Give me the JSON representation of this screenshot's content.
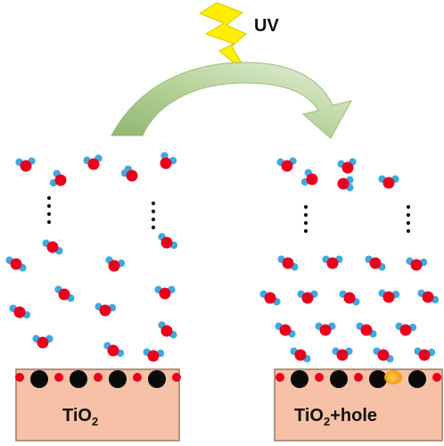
{
  "header": {
    "uv_label": "UV"
  },
  "left_panel": {
    "substrate_label": {
      "base": "TiO",
      "sub": "2",
      "suffix": ""
    }
  },
  "right_panel": {
    "substrate_label": {
      "base": "TiO",
      "sub": "2",
      "suffix": "+hole"
    }
  },
  "colors": {
    "oxygen": "#e8001c",
    "hydrogen": "#3fa9e0",
    "titanium": "#0a0a0a",
    "substrate": "#f6c1a6",
    "substrate_border": "#9a7a6a",
    "arrow": "#a9c98a",
    "lightning": "#ffee00",
    "hole": "#f2a516"
  }
}
